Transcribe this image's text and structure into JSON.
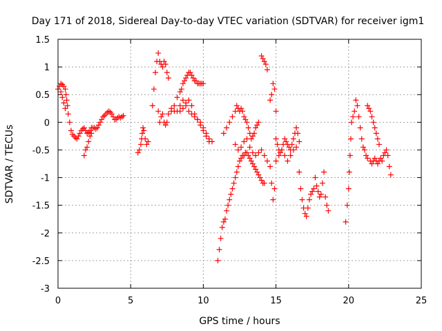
{
  "chart_data": {
    "type": "scatter",
    "title": "Day 171 of 2018, Sidereal Day-to-day VTEC variation (SDTVAR) for receiver igm1",
    "xlabel": "GPS time / hours",
    "ylabel": "SDTVAR / TECUs",
    "xlim": [
      0,
      25
    ],
    "ylim": [
      -3,
      1.5
    ],
    "xticks": [
      0,
      5,
      10,
      15,
      20,
      25
    ],
    "yticks": [
      -3,
      -2.5,
      -2,
      -1.5,
      -1,
      -0.5,
      0,
      0.5,
      1,
      1.5
    ],
    "grid": true,
    "marker": "+",
    "color": "#ff0000",
    "series": [
      {
        "name": "SDTVAR",
        "points": [
          [
            0.0,
            0.6
          ],
          [
            0.1,
            0.65
          ],
          [
            0.2,
            0.7
          ],
          [
            0.3,
            0.68
          ],
          [
            0.4,
            0.65
          ],
          [
            0.5,
            0.6
          ],
          [
            0.55,
            0.5
          ],
          [
            0.6,
            0.4
          ],
          [
            0.65,
            0.3
          ],
          [
            0.7,
            0.15
          ],
          [
            0.8,
            0.0
          ],
          [
            0.9,
            -0.15
          ],
          [
            1.0,
            -0.22
          ],
          [
            1.1,
            -0.25
          ],
          [
            1.2,
            -0.28
          ],
          [
            1.3,
            -0.3
          ],
          [
            1.4,
            -0.25
          ],
          [
            1.5,
            -0.2
          ],
          [
            1.6,
            -0.15
          ],
          [
            1.7,
            -0.12
          ],
          [
            1.8,
            -0.1
          ],
          [
            1.9,
            -0.15
          ],
          [
            2.0,
            -0.2
          ],
          [
            2.1,
            -0.18
          ],
          [
            2.2,
            -0.15
          ],
          [
            2.3,
            -0.1
          ],
          [
            2.4,
            -0.1
          ],
          [
            2.5,
            -0.1
          ],
          [
            2.6,
            -0.12
          ],
          [
            2.7,
            -0.1
          ],
          [
            2.8,
            -0.05
          ],
          [
            2.9,
            0.0
          ],
          [
            3.0,
            0.05
          ],
          [
            3.1,
            0.1
          ],
          [
            3.2,
            0.12
          ],
          [
            3.3,
            0.15
          ],
          [
            3.4,
            0.18
          ],
          [
            3.5,
            0.2
          ],
          [
            3.6,
            0.18
          ],
          [
            3.7,
            0.15
          ],
          [
            3.8,
            0.1
          ],
          [
            3.9,
            0.05
          ],
          [
            4.0,
            0.05
          ],
          [
            4.1,
            0.08
          ],
          [
            4.2,
            0.1
          ],
          [
            4.3,
            0.08
          ],
          [
            4.4,
            0.1
          ],
          [
            4.5,
            0.12
          ],
          [
            0.2,
            0.55
          ],
          [
            0.3,
            0.45
          ],
          [
            0.4,
            0.35
          ],
          [
            0.5,
            0.25
          ],
          [
            1.8,
            -0.6
          ],
          [
            1.9,
            -0.5
          ],
          [
            2.0,
            -0.45
          ],
          [
            2.1,
            -0.35
          ],
          [
            2.2,
            -0.25
          ],
          [
            2.3,
            -0.2
          ],
          [
            5.5,
            -0.55
          ],
          [
            5.6,
            -0.5
          ],
          [
            5.7,
            -0.4
          ],
          [
            5.75,
            -0.3
          ],
          [
            5.8,
            -0.2
          ],
          [
            5.85,
            -0.1
          ],
          [
            5.9,
            -0.15
          ],
          [
            6.0,
            -0.3
          ],
          [
            6.1,
            -0.4
          ],
          [
            6.2,
            -0.35
          ],
          [
            6.5,
            0.3
          ],
          [
            6.6,
            0.6
          ],
          [
            6.7,
            0.9
          ],
          [
            6.8,
            1.1
          ],
          [
            6.9,
            1.25
          ],
          [
            7.0,
            1.1
          ],
          [
            7.1,
            1.05
          ],
          [
            7.2,
            1.0
          ],
          [
            7.3,
            1.1
          ],
          [
            7.4,
            1.05
          ],
          [
            7.5,
            0.9
          ],
          [
            7.6,
            0.8
          ],
          [
            6.9,
            0.2
          ],
          [
            7.0,
            0.0
          ],
          [
            7.1,
            0.1
          ],
          [
            7.2,
            0.15
          ],
          [
            7.3,
            0.0
          ],
          [
            7.4,
            -0.05
          ],
          [
            7.5,
            0.0
          ],
          [
            7.6,
            0.15
          ],
          [
            7.8,
            0.2
          ],
          [
            8.0,
            0.3
          ],
          [
            8.2,
            0.45
          ],
          [
            8.4,
            0.55
          ],
          [
            8.5,
            0.6
          ],
          [
            8.6,
            0.7
          ],
          [
            8.7,
            0.75
          ],
          [
            8.8,
            0.8
          ],
          [
            8.9,
            0.85
          ],
          [
            9.0,
            0.9
          ],
          [
            9.1,
            0.9
          ],
          [
            9.2,
            0.85
          ],
          [
            9.3,
            0.8
          ],
          [
            9.4,
            0.75
          ],
          [
            9.5,
            0.75
          ],
          [
            9.6,
            0.7
          ],
          [
            9.7,
            0.7
          ],
          [
            9.8,
            0.7
          ],
          [
            9.9,
            0.7
          ],
          [
            10.0,
            0.7
          ],
          [
            7.8,
            0.25
          ],
          [
            8.0,
            0.2
          ],
          [
            8.2,
            0.2
          ],
          [
            8.4,
            0.3
          ],
          [
            8.6,
            0.4
          ],
          [
            8.8,
            0.3
          ],
          [
            9.0,
            0.2
          ],
          [
            9.2,
            0.15
          ],
          [
            9.4,
            0.1
          ],
          [
            9.6,
            0.05
          ],
          [
            9.8,
            0.0
          ],
          [
            10.0,
            -0.1
          ],
          [
            10.2,
            -0.2
          ],
          [
            10.4,
            -0.3
          ],
          [
            10.6,
            -0.35
          ],
          [
            8.4,
            0.2
          ],
          [
            8.6,
            0.25
          ],
          [
            8.8,
            0.35
          ],
          [
            9.0,
            0.4
          ],
          [
            9.2,
            0.3
          ],
          [
            9.4,
            0.15
          ],
          [
            9.6,
            0.05
          ],
          [
            9.8,
            -0.05
          ],
          [
            10.0,
            -0.15
          ],
          [
            10.2,
            -0.25
          ],
          [
            10.4,
            -0.35
          ],
          [
            11.0,
            -2.5
          ],
          [
            11.1,
            -2.3
          ],
          [
            11.2,
            -2.1
          ],
          [
            11.3,
            -1.9
          ],
          [
            11.4,
            -1.8
          ],
          [
            11.5,
            -1.75
          ],
          [
            11.6,
            -1.6
          ],
          [
            11.7,
            -1.5
          ],
          [
            11.8,
            -1.4
          ],
          [
            11.9,
            -1.3
          ],
          [
            12.0,
            -1.2
          ],
          [
            12.1,
            -1.1
          ],
          [
            12.2,
            -1.0
          ],
          [
            12.3,
            -0.9
          ],
          [
            12.4,
            -0.8
          ],
          [
            12.5,
            -0.7
          ],
          [
            12.6,
            -0.65
          ],
          [
            12.7,
            -0.6
          ],
          [
            12.8,
            -0.6
          ],
          [
            12.9,
            -0.55
          ],
          [
            13.0,
            -0.55
          ],
          [
            13.1,
            -0.6
          ],
          [
            13.2,
            -0.65
          ],
          [
            13.3,
            -0.7
          ],
          [
            13.4,
            -0.75
          ],
          [
            13.5,
            -0.8
          ],
          [
            13.6,
            -0.85
          ],
          [
            13.7,
            -0.9
          ],
          [
            13.8,
            -0.95
          ],
          [
            13.9,
            -1.0
          ],
          [
            14.0,
            -1.05
          ],
          [
            14.1,
            -1.1
          ],
          [
            14.2,
            -1.1
          ],
          [
            11.4,
            -0.2
          ],
          [
            11.6,
            -0.1
          ],
          [
            11.8,
            0.0
          ],
          [
            12.0,
            0.1
          ],
          [
            12.2,
            0.2
          ],
          [
            12.3,
            0.3
          ],
          [
            12.4,
            0.25
          ],
          [
            12.5,
            0.2
          ],
          [
            12.6,
            0.25
          ],
          [
            12.7,
            0.2
          ],
          [
            12.8,
            0.1
          ],
          [
            12.9,
            0.05
          ],
          [
            13.0,
            0.0
          ],
          [
            13.1,
            -0.1
          ],
          [
            13.2,
            -0.2
          ],
          [
            13.3,
            -0.3
          ],
          [
            13.4,
            -0.25
          ],
          [
            13.5,
            -0.2
          ],
          [
            13.6,
            -0.1
          ],
          [
            13.7,
            -0.05
          ],
          [
            13.8,
            0.0
          ],
          [
            12.2,
            -0.4
          ],
          [
            12.4,
            -0.5
          ],
          [
            12.6,
            -0.45
          ],
          [
            12.8,
            -0.35
          ],
          [
            13.0,
            -0.3
          ],
          [
            13.2,
            -0.45
          ],
          [
            13.4,
            -0.55
          ],
          [
            13.6,
            -0.6
          ],
          [
            13.8,
            -0.55
          ],
          [
            14.0,
            -0.5
          ],
          [
            14.2,
            -0.6
          ],
          [
            14.4,
            -0.7
          ],
          [
            14.0,
            1.2
          ],
          [
            14.1,
            1.15
          ],
          [
            14.2,
            1.1
          ],
          [
            14.3,
            1.05
          ],
          [
            14.4,
            0.95
          ],
          [
            14.6,
            0.4
          ],
          [
            14.7,
            0.5
          ],
          [
            14.8,
            0.7
          ],
          [
            14.9,
            0.6
          ],
          [
            15.0,
            0.2
          ],
          [
            14.6,
            -0.8
          ],
          [
            14.7,
            -1.1
          ],
          [
            14.8,
            -1.4
          ],
          [
            14.9,
            -1.2
          ],
          [
            15.0,
            -0.3
          ],
          [
            15.1,
            -0.4
          ],
          [
            15.2,
            -0.5
          ],
          [
            15.3,
            -0.55
          ],
          [
            15.4,
            -0.5
          ],
          [
            15.5,
            -0.4
          ],
          [
            15.6,
            -0.3
          ],
          [
            15.7,
            -0.35
          ],
          [
            15.8,
            -0.4
          ],
          [
            15.9,
            -0.45
          ],
          [
            16.0,
            -0.5
          ],
          [
            16.1,
            -0.4
          ],
          [
            16.2,
            -0.3
          ],
          [
            16.3,
            -0.2
          ],
          [
            16.4,
            -0.1
          ],
          [
            16.5,
            -0.2
          ],
          [
            16.6,
            -0.35
          ],
          [
            15.0,
            -0.7
          ],
          [
            15.2,
            -0.6
          ],
          [
            15.4,
            -0.5
          ],
          [
            15.6,
            -0.6
          ],
          [
            15.8,
            -0.7
          ],
          [
            16.0,
            -0.6
          ],
          [
            16.2,
            -0.5
          ],
          [
            16.4,
            -0.45
          ],
          [
            16.6,
            -0.9
          ],
          [
            16.7,
            -1.2
          ],
          [
            16.8,
            -1.4
          ],
          [
            16.9,
            -1.55
          ],
          [
            17.0,
            -1.65
          ],
          [
            17.1,
            -1.7
          ],
          [
            17.2,
            -1.55
          ],
          [
            17.3,
            -1.4
          ],
          [
            17.4,
            -1.3
          ],
          [
            17.5,
            -1.25
          ],
          [
            17.6,
            -1.2
          ],
          [
            17.7,
            -1.0
          ],
          [
            17.8,
            -1.15
          ],
          [
            17.9,
            -1.25
          ],
          [
            18.0,
            -1.35
          ],
          [
            18.1,
            -1.3
          ],
          [
            18.2,
            -1.1
          ],
          [
            18.3,
            -0.9
          ],
          [
            18.4,
            -1.35
          ],
          [
            18.5,
            -1.5
          ],
          [
            18.6,
            -1.6
          ],
          [
            19.8,
            -1.8
          ],
          [
            19.9,
            -1.5
          ],
          [
            20.0,
            -1.2
          ],
          [
            20.05,
            -0.9
          ],
          [
            20.1,
            -0.6
          ],
          [
            20.15,
            -0.3
          ],
          [
            20.2,
            0.0
          ],
          [
            20.3,
            0.1
          ],
          [
            20.4,
            0.2
          ],
          [
            20.5,
            0.4
          ],
          [
            20.6,
            0.3
          ],
          [
            20.7,
            0.1
          ],
          [
            20.8,
            -0.1
          ],
          [
            20.9,
            -0.3
          ],
          [
            21.0,
            -0.45
          ],
          [
            21.1,
            -0.5
          ],
          [
            21.2,
            -0.6
          ],
          [
            21.3,
            -0.65
          ],
          [
            21.3,
            0.3
          ],
          [
            21.4,
            0.25
          ],
          [
            21.5,
            0.2
          ],
          [
            21.6,
            0.1
          ],
          [
            21.7,
            0.0
          ],
          [
            21.8,
            -0.1
          ],
          [
            21.9,
            -0.2
          ],
          [
            22.0,
            -0.3
          ],
          [
            22.1,
            -0.4
          ],
          [
            21.5,
            -0.7
          ],
          [
            21.6,
            -0.75
          ],
          [
            21.7,
            -0.7
          ],
          [
            21.8,
            -0.65
          ],
          [
            21.9,
            -0.7
          ],
          [
            22.0,
            -0.75
          ],
          [
            22.1,
            -0.7
          ],
          [
            22.2,
            -0.65
          ],
          [
            22.3,
            -0.7
          ],
          [
            22.4,
            -0.6
          ],
          [
            22.5,
            -0.55
          ],
          [
            22.6,
            -0.5
          ],
          [
            22.7,
            -0.6
          ],
          [
            22.8,
            -0.8
          ],
          [
            22.9,
            -0.95
          ]
        ]
      }
    ]
  }
}
